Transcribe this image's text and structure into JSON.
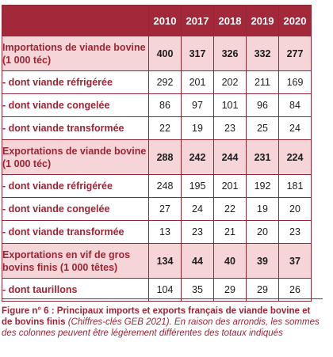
{
  "table": {
    "years": [
      "2010",
      "2017",
      "2018",
      "2019",
      "2020"
    ],
    "rows": [
      {
        "label": "Importations de viande bovine (1 000 téc)",
        "values": [
          "400",
          "317",
          "326",
          "332",
          "277"
        ],
        "main": true
      },
      {
        "label": "- dont viande réfrigérée",
        "values": [
          "292",
          "201",
          "202",
          "211",
          "169"
        ],
        "main": false
      },
      {
        "label": "- dont viande congelée",
        "values": [
          "86",
          "97",
          "101",
          "96",
          "84"
        ],
        "main": false
      },
      {
        "label": "- dont viande transformée",
        "values": [
          "22",
          "19",
          "23",
          "25",
          "24"
        ],
        "main": false
      },
      {
        "label": "Exportations de viande bovine (1 000 téc)",
        "values": [
          "288",
          "242",
          "244",
          "231",
          "224"
        ],
        "main": true
      },
      {
        "label": "- dont viande réfrigérée",
        "values": [
          "248",
          "195",
          "201",
          "192",
          "181"
        ],
        "main": false
      },
      {
        "label": "- dont viande congelée",
        "values": [
          "27",
          "24",
          "22",
          "19",
          "20"
        ],
        "main": false
      },
      {
        "label": "- dont viande transformée",
        "values": [
          "13",
          "23",
          "21",
          "20",
          "23"
        ],
        "main": false
      },
      {
        "label": "Exportations en vif de gros bovins finis (1 000 têtes)",
        "values": [
          "134",
          "44",
          "40",
          "39",
          "37"
        ],
        "main": true
      },
      {
        "label": "- dont taurillons",
        "values": [
          "104",
          "35",
          "29",
          "29",
          "26"
        ],
        "main": false
      }
    ]
  },
  "caption": {
    "title": "Figure n° 6 : Principaux imports et exports français de viande bovine et de bovins finis",
    "note": "(Chiffres-clés GEB 2021). En raison des arrondis, les sommes des colonnes peuvent être légèrement différentes des totaux indiqués"
  },
  "colors": {
    "accent": "#a2283a",
    "highlight_row": "#f6d5d8",
    "label_text": "#9d2434"
  }
}
